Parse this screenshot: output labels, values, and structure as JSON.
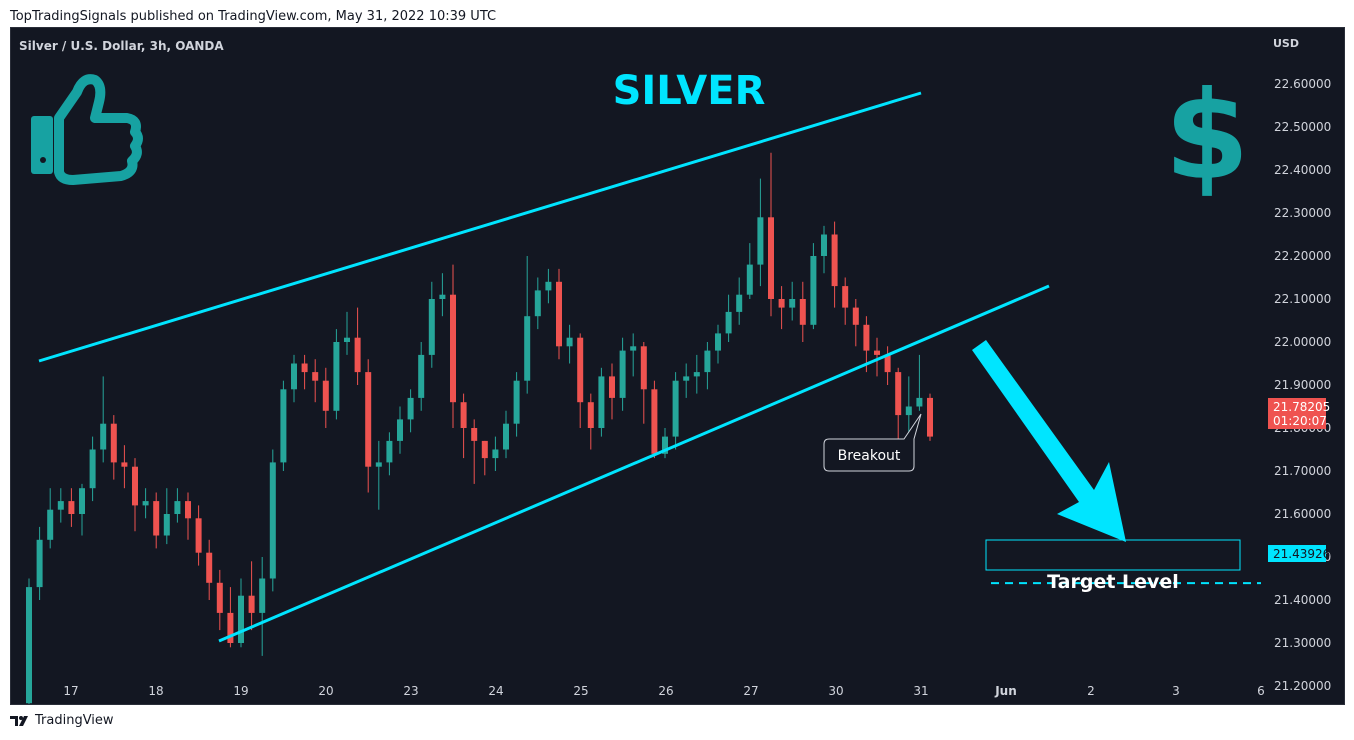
{
  "header": {
    "publish_line": "TopTradingSignals published on TradingView.com, May 31, 2022 10:39 UTC"
  },
  "footer": {
    "brand": "TradingView"
  },
  "chart_data": {
    "type": "candlestick",
    "symbol_title": "Silver / U.S. Dollar, 3h, OANDA",
    "headline": "SILVER",
    "currency_label": "USD",
    "ylim": [
      21.15,
      22.62
    ],
    "y_ticks": [
      21.2,
      21.3,
      21.4,
      21.5,
      21.6,
      21.7,
      21.8,
      21.9,
      22.0,
      22.1,
      22.2,
      22.3,
      22.4,
      22.5,
      22.6
    ],
    "x_ticks": [
      "17",
      "18",
      "19",
      "20",
      "23",
      "24",
      "25",
      "26",
      "27",
      "30",
      "31",
      "Jun",
      "2",
      "3",
      "6"
    ],
    "last_price": "21.78205",
    "countdown": "01:20:07",
    "target_price": "21.43926",
    "target_value": 21.43926,
    "target_label": "Target Level",
    "breakout_label": "Breakout",
    "colors": {
      "background": "#131722",
      "up": "#26a69a",
      "down": "#ef5350",
      "accent": "#00e5ff",
      "icon": "#17a2a2"
    },
    "candles": [
      [
        21.16,
        21.43,
        21.14,
        21.45
      ],
      [
        21.43,
        21.54,
        21.4,
        21.57
      ],
      [
        21.54,
        21.61,
        21.52,
        21.66
      ],
      [
        21.61,
        21.63,
        21.58,
        21.66
      ],
      [
        21.63,
        21.6,
        21.57,
        21.66
      ],
      [
        21.6,
        21.66,
        21.55,
        21.67
      ],
      [
        21.66,
        21.75,
        21.63,
        21.78
      ],
      [
        21.75,
        21.81,
        21.72,
        21.92
      ],
      [
        21.81,
        21.72,
        21.68,
        21.83
      ],
      [
        21.72,
        21.71,
        21.66,
        21.76
      ],
      [
        21.71,
        21.62,
        21.56,
        21.73
      ],
      [
        21.62,
        21.63,
        21.59,
        21.66
      ],
      [
        21.63,
        21.55,
        21.52,
        21.65
      ],
      [
        21.55,
        21.6,
        21.53,
        21.66
      ],
      [
        21.6,
        21.63,
        21.58,
        21.66
      ],
      [
        21.63,
        21.59,
        21.54,
        21.65
      ],
      [
        21.59,
        21.51,
        21.48,
        21.62
      ],
      [
        21.51,
        21.44,
        21.4,
        21.54
      ],
      [
        21.44,
        21.37,
        21.33,
        21.47
      ],
      [
        21.37,
        21.3,
        21.29,
        21.43
      ],
      [
        21.3,
        21.41,
        21.29,
        21.45
      ],
      [
        21.41,
        21.37,
        21.33,
        21.49
      ],
      [
        21.37,
        21.45,
        21.27,
        21.5
      ],
      [
        21.45,
        21.72,
        21.42,
        21.75
      ],
      [
        21.72,
        21.89,
        21.7,
        21.91
      ],
      [
        21.89,
        21.95,
        21.86,
        21.97
      ],
      [
        21.95,
        21.93,
        21.89,
        21.97
      ],
      [
        21.93,
        21.91,
        21.86,
        21.96
      ],
      [
        21.91,
        21.84,
        21.8,
        21.94
      ],
      [
        21.84,
        22.0,
        21.82,
        22.03
      ],
      [
        22.0,
        22.01,
        21.97,
        22.07
      ],
      [
        22.01,
        21.93,
        21.9,
        22.08
      ],
      [
        21.93,
        21.71,
        21.65,
        21.96
      ],
      [
        21.71,
        21.72,
        21.61,
        21.77
      ],
      [
        21.72,
        21.77,
        21.69,
        21.79
      ],
      [
        21.77,
        21.82,
        21.74,
        21.85
      ],
      [
        21.82,
        21.87,
        21.79,
        21.89
      ],
      [
        21.87,
        21.97,
        21.84,
        22.0
      ],
      [
        21.97,
        22.1,
        21.94,
        22.14
      ],
      [
        22.1,
        22.11,
        22.06,
        22.16
      ],
      [
        22.11,
        21.86,
        21.8,
        22.18
      ],
      [
        21.86,
        21.8,
        21.73,
        21.88
      ],
      [
        21.8,
        21.77,
        21.67,
        21.82
      ],
      [
        21.77,
        21.73,
        21.69,
        21.77
      ],
      [
        21.73,
        21.75,
        21.7,
        21.78
      ],
      [
        21.75,
        21.81,
        21.73,
        21.84
      ],
      [
        21.81,
        21.91,
        21.78,
        21.93
      ],
      [
        21.91,
        22.06,
        21.88,
        22.2
      ],
      [
        22.06,
        22.12,
        22.03,
        22.15
      ],
      [
        22.12,
        22.14,
        22.09,
        22.17
      ],
      [
        22.14,
        21.99,
        21.96,
        22.17
      ],
      [
        21.99,
        22.01,
        21.95,
        22.04
      ],
      [
        22.01,
        21.86,
        21.8,
        22.02
      ],
      [
        21.86,
        21.8,
        21.75,
        21.88
      ],
      [
        21.8,
        21.92,
        21.78,
        21.94
      ],
      [
        21.92,
        21.87,
        21.82,
        21.95
      ],
      [
        21.87,
        21.98,
        21.84,
        22.01
      ],
      [
        21.98,
        21.99,
        21.92,
        22.02
      ],
      [
        21.99,
        21.89,
        21.81,
        22.0
      ],
      [
        21.89,
        21.74,
        21.73,
        21.91
      ],
      [
        21.74,
        21.78,
        21.73,
        21.8
      ],
      [
        21.78,
        21.91,
        21.75,
        21.93
      ],
      [
        21.91,
        21.92,
        21.87,
        21.95
      ],
      [
        21.92,
        21.93,
        21.88,
        21.97
      ],
      [
        21.93,
        21.98,
        21.89,
        22.0
      ],
      [
        21.98,
        22.02,
        21.95,
        22.04
      ],
      [
        22.02,
        22.07,
        22.0,
        22.11
      ],
      [
        22.07,
        22.11,
        22.04,
        22.15
      ],
      [
        22.11,
        22.18,
        22.1,
        22.23
      ],
      [
        22.18,
        22.29,
        22.13,
        22.38
      ],
      [
        22.29,
        22.1,
        22.06,
        22.44
      ],
      [
        22.1,
        22.08,
        22.03,
        22.13
      ],
      [
        22.08,
        22.1,
        22.05,
        22.14
      ],
      [
        22.1,
        22.04,
        22.0,
        22.14
      ],
      [
        22.04,
        22.2,
        22.03,
        22.23
      ],
      [
        22.2,
        22.25,
        22.16,
        22.27
      ],
      [
        22.25,
        22.13,
        22.08,
        22.28
      ],
      [
        22.13,
        22.08,
        22.04,
        22.15
      ],
      [
        22.08,
        22.04,
        21.99,
        22.1
      ],
      [
        22.04,
        21.98,
        21.93,
        22.06
      ],
      [
        21.98,
        21.97,
        21.92,
        22.01
      ],
      [
        21.97,
        21.93,
        21.9,
        21.99
      ],
      [
        21.93,
        21.83,
        21.77,
        21.94
      ],
      [
        21.83,
        21.85,
        21.78,
        21.92
      ],
      [
        21.85,
        21.87,
        21.84,
        21.97
      ],
      [
        21.87,
        21.78,
        21.77,
        21.88
      ]
    ]
  }
}
